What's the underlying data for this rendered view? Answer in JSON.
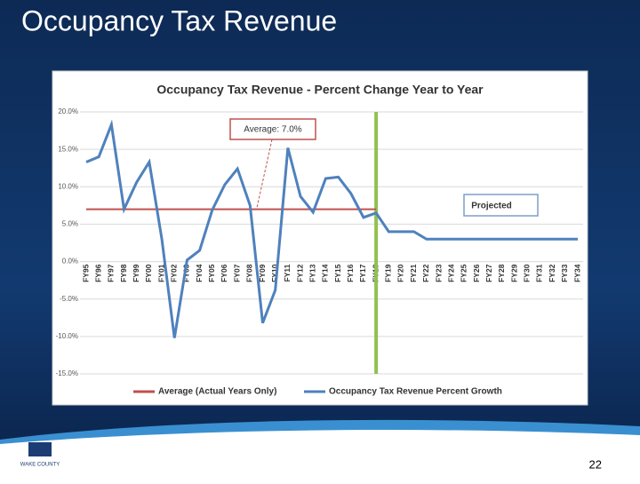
{
  "slide_title": "Occupancy Tax Revenue",
  "page_number": "22",
  "logo_text": "WAKE COUNTY",
  "chart_data": {
    "type": "line",
    "title": "Occupancy Tax Revenue - Percent Change Year to Year",
    "categories": [
      "FY95",
      "FY96",
      "FY97",
      "FY98",
      "FY99",
      "FY00",
      "FY01",
      "FY02",
      "FY03",
      "FY04",
      "FY05",
      "FY06",
      "FY07",
      "FY08",
      "FY09",
      "FY10",
      "FY11",
      "FY12",
      "FY13",
      "FY14",
      "FY15",
      "FY16",
      "FY17",
      "FY18",
      "FY19",
      "FY20",
      "FY21",
      "FY22",
      "FY23",
      "FY24",
      "FY25",
      "FY26",
      "FY27",
      "FY28",
      "FY29",
      "FY30",
      "FY31",
      "FY32",
      "FY33",
      "FY34"
    ],
    "series": [
      {
        "name": "Average (Actual Years Only)",
        "color": "#c0504d",
        "values": [
          7.0,
          7.0,
          7.0,
          7.0,
          7.0,
          7.0,
          7.0,
          7.0,
          7.0,
          7.0,
          7.0,
          7.0,
          7.0,
          7.0,
          7.0,
          7.0,
          7.0,
          7.0,
          7.0,
          7.0,
          7.0,
          7.0,
          7.0,
          7.0,
          null,
          null,
          null,
          null,
          null,
          null,
          null,
          null,
          null,
          null,
          null,
          null,
          null,
          null,
          null,
          null
        ]
      },
      {
        "name": "Occupancy Tax Revenue Percent Growth",
        "color": "#4f81bd",
        "values": [
          13.3,
          14.0,
          18.3,
          7.0,
          10.6,
          13.3,
          3.0,
          -10.2,
          0.2,
          1.5,
          6.9,
          10.3,
          12.4,
          7.5,
          -8.2,
          -3.8,
          15.2,
          8.7,
          6.6,
          11.1,
          11.3,
          9.1,
          5.9,
          6.5,
          4.0,
          4.0,
          4.0,
          3.0,
          3.0,
          3.0,
          3.0,
          3.0,
          3.0,
          3.0,
          3.0,
          3.0,
          3.0,
          3.0,
          3.0,
          3.0
        ]
      }
    ],
    "ylim": [
      -15,
      20
    ],
    "yticks": [
      {
        "value": -15,
        "label": "-15.0%"
      },
      {
        "value": -10,
        "label": "-10.0%"
      },
      {
        "value": -5,
        "label": "-5.0%"
      },
      {
        "value": 0,
        "label": "0.0%"
      },
      {
        "value": 5,
        "label": "5.0%"
      },
      {
        "value": 10,
        "label": "10.0%"
      },
      {
        "value": 15,
        "label": "15.0%"
      },
      {
        "value": 20,
        "label": "20.0%"
      }
    ],
    "grid": true,
    "legend": "bottom",
    "divider": {
      "category": "FY18",
      "color": "#92c050"
    },
    "annotations": [
      "Average: 7.0%",
      "Projected"
    ]
  }
}
